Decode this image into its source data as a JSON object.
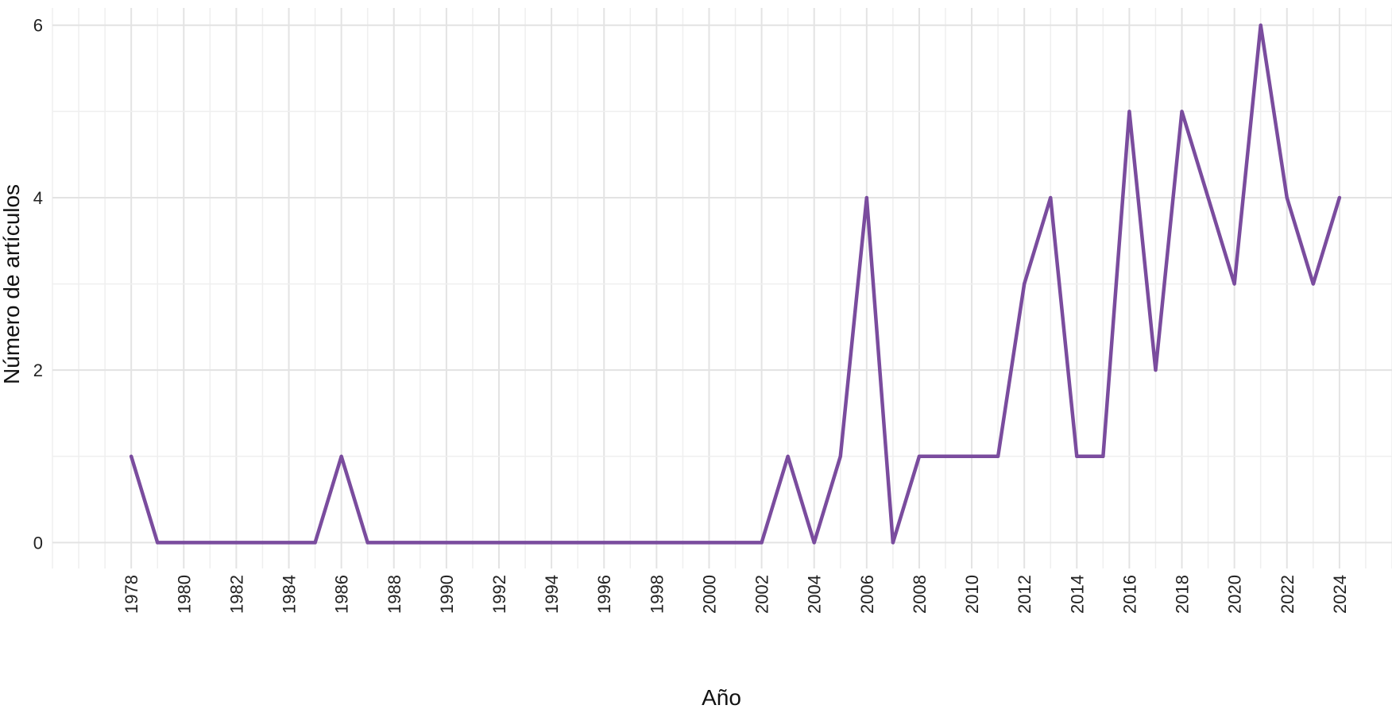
{
  "chart_data": {
    "type": "line",
    "title": "",
    "xlabel": "Año",
    "ylabel": "Número de artículos",
    "xlim": [
      1975,
      2026
    ],
    "ylim": [
      -0.3,
      6.2
    ],
    "y_ticks": [
      0,
      2,
      4,
      6
    ],
    "x_ticks": [
      1978,
      1980,
      1982,
      1984,
      1986,
      1988,
      1990,
      1992,
      1994,
      1996,
      1998,
      2000,
      2002,
      2004,
      2006,
      2008,
      2010,
      2012,
      2014,
      2016,
      2018,
      2020,
      2022,
      2024
    ],
    "grid": true,
    "legend": "none",
    "series": [
      {
        "color": "#7a4c9e",
        "x": [
          1978,
          1979,
          1980,
          1981,
          1982,
          1983,
          1984,
          1985,
          1986,
          1987,
          1988,
          1989,
          1990,
          1991,
          1992,
          1993,
          1994,
          1995,
          1996,
          1997,
          1998,
          1999,
          2000,
          2001,
          2002,
          2003,
          2004,
          2005,
          2006,
          2007,
          2008,
          2009,
          2010,
          2011,
          2012,
          2013,
          2014,
          2015,
          2016,
          2017,
          2018,
          2019,
          2020,
          2021,
          2022,
          2023,
          2024
        ],
        "values": [
          1,
          0,
          0,
          0,
          0,
          0,
          0,
          0,
          1,
          0,
          0,
          0,
          0,
          0,
          0,
          0,
          0,
          0,
          0,
          0,
          0,
          0,
          0,
          0,
          0,
          1,
          0,
          1,
          4,
          0,
          1,
          1,
          1,
          1,
          3,
          4,
          1,
          1,
          5,
          2,
          5,
          4,
          3,
          6,
          4,
          3,
          4
        ]
      }
    ]
  }
}
